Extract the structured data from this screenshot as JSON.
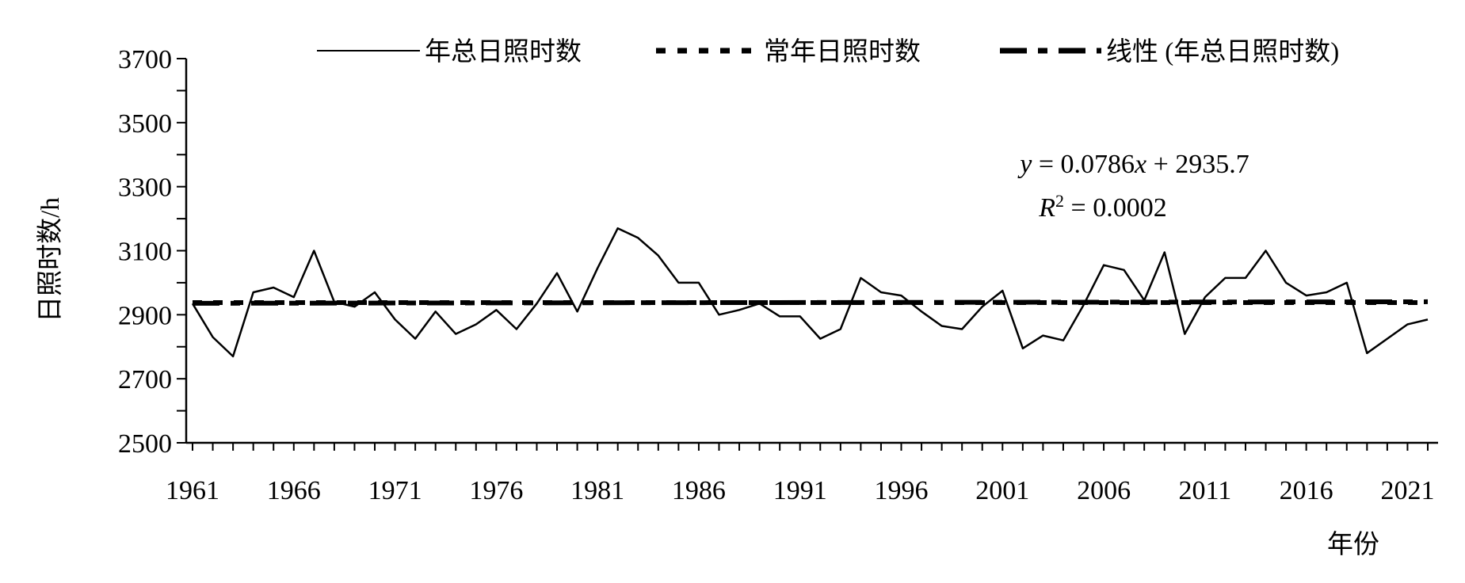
{
  "chart_data": {
    "type": "line",
    "xlabel": "年份",
    "ylabel": "日照时数/h",
    "ylim": [
      2500,
      3700
    ],
    "y_ticks": [
      2500,
      2700,
      2900,
      3100,
      3300,
      3500,
      3700
    ],
    "xlim": [
      1961,
      2022
    ],
    "x_tick_labels": [
      "1961",
      "1966",
      "1971",
      "1976",
      "1981",
      "1986",
      "1991",
      "1996",
      "2001",
      "2006",
      "2011",
      "2016",
      "2021"
    ],
    "grid": false,
    "legend_position": "top",
    "x": [
      1961,
      1962,
      1963,
      1964,
      1965,
      1966,
      1967,
      1968,
      1969,
      1970,
      1971,
      1972,
      1973,
      1974,
      1975,
      1976,
      1977,
      1978,
      1979,
      1980,
      1981,
      1982,
      1983,
      1984,
      1985,
      1986,
      1987,
      1988,
      1989,
      1990,
      1991,
      1992,
      1993,
      1994,
      1995,
      1996,
      1997,
      1998,
      1999,
      2000,
      2001,
      2002,
      2003,
      2004,
      2005,
      2006,
      2007,
      2008,
      2009,
      2010,
      2011,
      2012,
      2013,
      2014,
      2015,
      2016,
      2017,
      2018,
      2019,
      2020,
      2021,
      2022
    ],
    "series": [
      {
        "name": "年总日照时数",
        "style": "solid",
        "values": [
          2935,
          2830,
          2770,
          2970,
          2985,
          2955,
          3100,
          2940,
          2925,
          2970,
          2885,
          2825,
          2910,
          2840,
          2870,
          2915,
          2855,
          2935,
          3030,
          2910,
          3045,
          3170,
          3140,
          3085,
          3000,
          3000,
          2900,
          2915,
          2935,
          2895,
          2895,
          2825,
          2855,
          3015,
          2970,
          2960,
          2910,
          2865,
          2855,
          2925,
          2975,
          2795,
          2835,
          2820,
          2930,
          3055,
          3040,
          2945,
          3095,
          2840,
          2955,
          3015,
          3015,
          3100,
          3000,
          2960,
          2970,
          3000,
          2780,
          2825,
          2870,
          2885
        ]
      },
      {
        "name": "常年日照时数",
        "style": "dotted",
        "values": [
          2938,
          2938,
          2938,
          2938,
          2938,
          2938,
          2938,
          2938,
          2938,
          2938,
          2938,
          2938,
          2938,
          2938,
          2938,
          2938,
          2938,
          2938,
          2938,
          2938,
          2938,
          2938,
          2938,
          2938,
          2938,
          2938,
          2938,
          2938,
          2938,
          2938,
          2938,
          2938,
          2938,
          2938,
          2938,
          2938,
          2938,
          2938,
          2938,
          2938,
          2938,
          2938,
          2938,
          2938,
          2938,
          2938,
          2938,
          2938,
          2938,
          2938,
          2938,
          2938,
          2938,
          2938,
          2938,
          2938,
          2938,
          2938,
          2938,
          2938,
          2938,
          2938
        ]
      },
      {
        "name": "线性 (年总日照时数)",
        "style": "dashed",
        "trend": {
          "slope": 0.0786,
          "intercept": 2935.7
        }
      }
    ],
    "annotations": {
      "equation_y": "y",
      "equation_eq": " = 0.0786",
      "equation_x": "x",
      "equation_rest": " + 2935.7",
      "r2_r": "R",
      "r2_sup": "2",
      "r2_rest": " = 0.0002"
    },
    "colors": {
      "line": "#000000",
      "background": "#ffffff"
    }
  }
}
